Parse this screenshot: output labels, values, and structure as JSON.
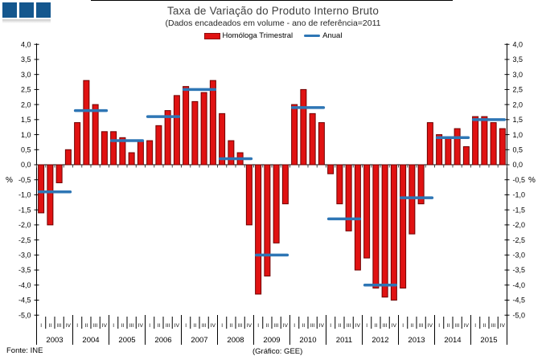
{
  "logo": {
    "name": "three-squares-logo",
    "color": "#14578E",
    "square_count": 3
  },
  "header": {
    "title": "Taxa de Variação do Produto Interno Bruto",
    "subtitle": "(Dados encadeados em volume  - ano de referência=2011"
  },
  "legend": {
    "quarterly_label": "Homóloga Trimestral",
    "annual_label": "Anual",
    "quarterly_color": "#E01212",
    "quarterly_border": "#8F0E0E",
    "annual_color": "#2E76B5"
  },
  "footer": {
    "source": "Fonte: INE",
    "credit": "(Gráfico: GEE)"
  },
  "chart_data": {
    "type": "bar",
    "title": "Taxa de Variação do Produto Interno Bruto",
    "subtitle": "(Dados encadeados em volume  - ano de referência=2011",
    "unit": "%",
    "ylim": [
      -5.0,
      4.0
    ],
    "ytick_step": 0.5,
    "decimal_separator": ",",
    "yticks": [
      "4,0",
      "3,5",
      "3,0",
      "2,5",
      "2,0",
      "1,5",
      "1,0",
      "0,5",
      "0,0",
      "-0,5",
      "-1,0",
      "-1,5",
      "-2,0",
      "-2,5",
      "-3,0",
      "-3,5",
      "-4,0",
      "-4,5",
      "-5,0"
    ],
    "grid": false,
    "legend_position": "top",
    "years": [
      "2003",
      "2004",
      "2005",
      "2006",
      "2007",
      "2008",
      "2009",
      "2010",
      "2011",
      "2012",
      "2013",
      "2014",
      "2015"
    ],
    "quarters": [
      "I",
      "II",
      "III",
      "IV"
    ],
    "series": [
      {
        "name": "Homóloga Trimestral",
        "type": "bar",
        "color": "#E01212",
        "border_color": "#6F0000",
        "values": [
          [
            -1.6,
            -2.0,
            -0.6,
            0.5
          ],
          [
            1.4,
            2.8,
            2.0,
            1.1
          ],
          [
            1.1,
            0.9,
            0.4,
            0.8
          ],
          [
            0.8,
            1.3,
            1.8,
            2.3
          ],
          [
            2.6,
            2.1,
            2.4,
            2.8
          ],
          [
            1.7,
            0.8,
            0.4,
            -2.0
          ],
          [
            -4.3,
            -3.7,
            -2.6,
            -1.3
          ],
          [
            2.0,
            2.5,
            1.7,
            1.4
          ],
          [
            -0.3,
            -1.3,
            -2.2,
            -3.5
          ],
          [
            -3.1,
            -4.1,
            -4.4,
            -4.5
          ],
          [
            -4.1,
            -2.3,
            -1.3,
            1.4
          ],
          [
            1.0,
            0.9,
            1.2,
            0.6
          ],
          [
            1.6,
            1.6,
            1.4,
            1.2
          ]
        ]
      },
      {
        "name": "Anual",
        "type": "line",
        "color": "#2E76B5",
        "values": [
          -0.9,
          1.8,
          0.8,
          1.6,
          2.5,
          0.2,
          -3.0,
          1.9,
          -1.8,
          -4.0,
          -1.1,
          0.9,
          1.5
        ]
      }
    ],
    "source": "Fonte: INE",
    "credit": "(Gráfico: GEE)"
  }
}
